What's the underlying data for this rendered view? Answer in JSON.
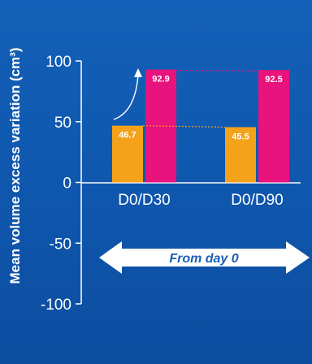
{
  "chart_data": {
    "type": "bar",
    "categories": [
      "D0/D30",
      "D0/D90"
    ],
    "series": [
      {
        "values": [
          46.7,
          45.5
        ],
        "color": "#f5a21b"
      },
      {
        "values": [
          92.9,
          92.5
        ],
        "color": "#e8137d"
      }
    ],
    "title": "",
    "xlabel": "",
    "ylabel": "Mean volume excess variation (cm³)",
    "ylim": [
      -100,
      100
    ],
    "yticks": [
      "100",
      "50",
      "0",
      "-50",
      "-100"
    ],
    "data_labels": [
      [
        "46.7",
        "45.5"
      ],
      [
        "92.9",
        "92.5"
      ]
    ],
    "annotation": "From day 0",
    "grid": false,
    "legend": "none"
  },
  "colors": {
    "background": "#1063b8",
    "axis": "#ffffff",
    "arrow": "#ffffff"
  }
}
